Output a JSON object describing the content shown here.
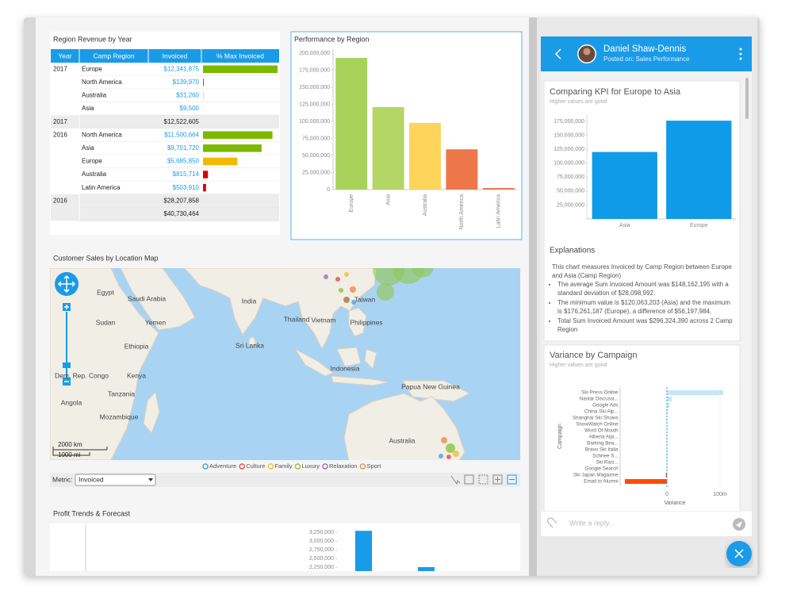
{
  "region_table": {
    "title": "Region Revenue by Year",
    "columns": [
      "Year",
      "Camp Region",
      "Invoiced",
      "% Max Invoiced"
    ],
    "rows": [
      {
        "year": "2017",
        "region": "Europe",
        "invoiced": {
          "value": 12341875,
          "label": "$12,341,875"
        },
        "color": "#7cb900"
      },
      {
        "region": "North America",
        "invoiced": {
          "value": 139970,
          "label": "$139,970"
        },
        "color": "#e03b1f"
      },
      {
        "region": "Australia",
        "invoiced": {
          "value": 31260,
          "label": "$31,260"
        },
        "color": "#e03b1f"
      },
      {
        "region": "Asia",
        "invoiced": {
          "value": 9500,
          "label": "$9,500"
        },
        "color": "#e03b1f"
      },
      {
        "year": "2017",
        "invoiced": {
          "value": 12522605,
          "label": "$12,522,605"
        },
        "subtotal": true
      },
      {
        "year": "2016",
        "region": "North America",
        "invoiced": {
          "value": 11500664,
          "label": "$11,500,664"
        },
        "color": "#7cb900"
      },
      {
        "region": "Asia",
        "invoiced": {
          "value": 9701720,
          "label": "$9,701,720"
        },
        "color": "#7cb900"
      },
      {
        "region": "Europe",
        "invoiced": {
          "value": 5685850,
          "label": "$5,685,850"
        },
        "color": "#f5b800"
      },
      {
        "region": "Australia",
        "invoiced": {
          "value": 815714,
          "label": "$815,714"
        },
        "color": "#d9000d"
      },
      {
        "region": "Latin America",
        "invoiced": {
          "value": 503910,
          "label": "$503,910"
        },
        "color": "#d9000d"
      },
      {
        "year": "2016",
        "invoiced": {
          "value": 28207858,
          "label": "$28,207,858"
        },
        "subtotal": true
      },
      {
        "invoiced": {
          "value": 40730464,
          "label": "$40,730,464"
        },
        "subtotal": true
      }
    ]
  },
  "performance_chart": {
    "type": "bar",
    "title": "Performance by Region",
    "categories": [
      "Europe",
      "Asia",
      "Australia",
      "North America",
      "Latin America"
    ],
    "values": [
      193000000,
      121000000,
      97700000,
      59000000,
      2300000
    ],
    "colors": [
      "#a8d25a",
      "#b3d665",
      "#ffd45a",
      "#ee774a",
      "#ee774a"
    ],
    "ylim": [
      0,
      200000000
    ],
    "yticks": [
      0,
      {
        "value": 25000000,
        "label": "25,000,000"
      },
      {
        "value": 50000000,
        "label": "50,000,000"
      },
      {
        "value": 75000000,
        "label": "75,000,000"
      },
      {
        "value": 100000000,
        "label": "100,000,000"
      },
      {
        "value": 125000000,
        "label": "125,000,000"
      },
      {
        "value": 150000000,
        "label": "150,000,000"
      },
      {
        "value": 175000000,
        "label": "175,000,000"
      },
      {
        "value": 200000000,
        "label": "200,000,000"
      }
    ]
  },
  "map": {
    "title": "Customer Sales by Location Map",
    "labels": [
      "Egypt",
      "Saudi Arabia",
      "Sudan",
      "Yemen",
      "Ethiopia",
      "Kenya",
      "Tanzania",
      "Dem. Rep. Congo",
      "Angola",
      "Mozambique",
      "India",
      "Sri Lanka",
      "Thailand",
      "Vietnam",
      "Taiwan",
      "Philippines",
      "Indonesia",
      "Papua New Guinea",
      "Australia"
    ],
    "legend": [
      "Adventure",
      "Culture",
      "Family",
      "Luxury",
      "Relaxation",
      "Sport"
    ],
    "legend_colors": [
      "#4aa3df",
      "#e0524c",
      "#f2c230",
      "#8cc63f",
      "#9b6fc0",
      "#f08a4b"
    ],
    "scale": [
      "2000 km",
      "1000 mi"
    ],
    "metric_label": "Metric:",
    "metric": "Invoiced"
  },
  "profit_chart": {
    "type": "bar",
    "title": "Profit Trends & Forecast",
    "values": [
      3300000,
      2260000
    ],
    "color": "#1a9be8",
    "ylim": [
      2100000,
      3350000
    ],
    "yticks": [
      {
        "value": 2250000,
        "label": "2,250,000"
      },
      {
        "value": 2500000,
        "label": "2,500,000"
      },
      {
        "value": 2750000,
        "label": "2,750,000"
      },
      {
        "value": 3000000,
        "label": "3,000,000"
      },
      {
        "value": 3250000,
        "label": "3,250,000"
      }
    ]
  },
  "side_panel": {
    "user": "Daniel Shaw-Dennis",
    "posted_on": "Posted on: Sales Performance",
    "kpi_chart": {
      "type": "bar",
      "title": "Comparing KPI for Europe to Asia",
      "subtitle": "Higher values are good",
      "categories": [
        "Asia",
        "Europe"
      ],
      "values": [
        120063203,
        176261187
      ],
      "color": "#0f9be8",
      "ylim": [
        0,
        186000000
      ],
      "yticks": [
        {
          "value": 25000000,
          "label": "25,000,000"
        },
        {
          "value": 50000000,
          "label": "50,000,000"
        },
        {
          "value": 75000000,
          "label": "75,000,000"
        },
        {
          "value": 100000000,
          "label": "100,000,000"
        },
        {
          "value": 125000000,
          "label": "125,000,000"
        },
        {
          "value": 150000000,
          "label": "150,000,000"
        },
        {
          "value": 175000000,
          "label": "175,000,000"
        }
      ]
    },
    "explanations": {
      "title": "Explanations",
      "intro": "This chart measures Invoiced by Camp Region between Europe and Asia (Camp Region)",
      "bullets": [
        "The average Sum Invoiced Amount was $148,162,195 with a standard deviation of $28,098,992.",
        "The minimum value is $120,063,203 (Asia) and the maximum is $176,261,187 (Europe), a difference of $56,197,984.",
        "Total Sum Invoiced Amount was $296,324,390 across 2 Camp Region"
      ]
    },
    "variance_chart": {
      "type": "hbar",
      "title": "Variance by Campaign",
      "subtitle": "Higher values are good",
      "x_label": "Variance",
      "y_label": "Campaign",
      "categories": [
        "Ski Press Online",
        "Nastar Discussi...",
        "Google Ads",
        "China Ski Alp...",
        "Shanghai Ski Shows",
        "SnowWatch Online",
        "Word Of Mouth",
        "Alberta Alpi...",
        "Barking Bea...",
        "Bravo Ski Italia",
        "Schnee S...",
        "Ski Raci...",
        "Google Search",
        "Ski Japan Magazine",
        "Email to Alumni"
      ],
      "values": [
        106000000,
        9000000,
        5000000,
        1500000,
        1000000,
        1000000,
        1000000,
        1000000,
        1000000,
        1000000,
        1000000,
        1000000,
        1000000,
        -2000000,
        -79000000
      ],
      "color": "#c5e6f7",
      "negative_color": "#ff4c00",
      "xlim": [
        -87000000,
        112000000
      ],
      "xticks": [
        0,
        {
          "value": 100000000,
          "label": "100m"
        }
      ]
    },
    "reply_placeholder": "Write a reply..."
  }
}
